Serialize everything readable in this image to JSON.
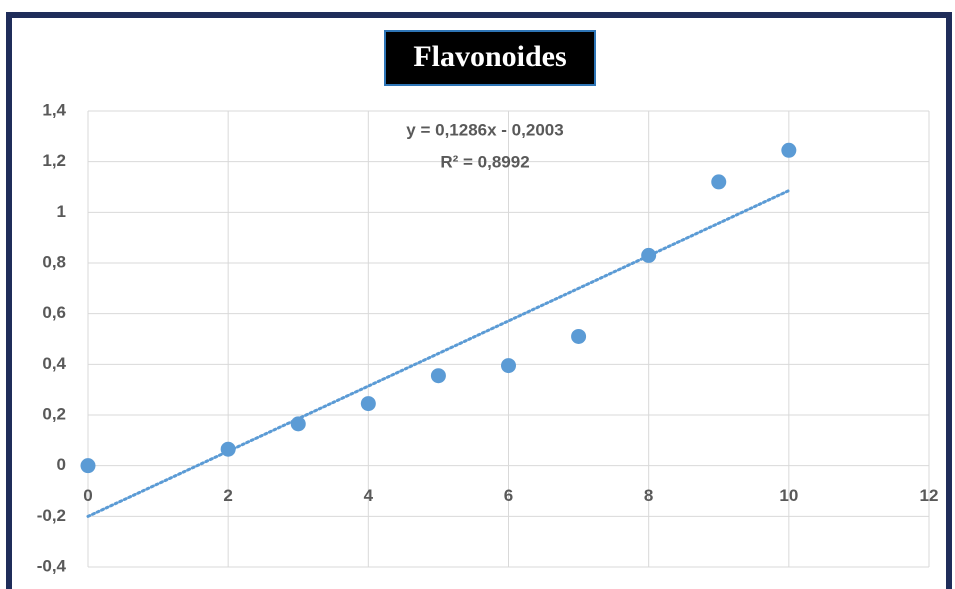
{
  "chart_data": {
    "type": "scatter",
    "title": "Flavonoides",
    "x": [
      0,
      2,
      3,
      4,
      5,
      6,
      7,
      8,
      9,
      10
    ],
    "series": [
      {
        "color": "#5b9bd5",
        "values": [
          0,
          0.065,
          0.165,
          0.245,
          0.355,
          0.395,
          0.51,
          0.83,
          1.12,
          1.245
        ]
      }
    ],
    "trendline": {
      "slope": 0.1286,
      "intercept": -0.2003,
      "color": "#5b9bd5"
    },
    "annotations": [
      "y = 0,1286x - 0,2003",
      "R² = 0,8992"
    ],
    "xlim": [
      0,
      12
    ],
    "xticks": [
      0,
      2,
      4,
      6,
      8,
      10,
      12
    ],
    "ylim": [
      -0.4,
      1.4
    ],
    "yticks": [
      {
        "value": -0.4,
        "label": "-0,4"
      },
      {
        "value": -0.2,
        "label": "-0,2"
      },
      0,
      {
        "value": 0.2,
        "label": "0,2"
      },
      {
        "value": 0.4,
        "label": "0,4"
      },
      {
        "value": 0.6,
        "label": "0,6"
      },
      {
        "value": 0.8,
        "label": "0,8"
      },
      1,
      {
        "value": 1.2,
        "label": "1,2"
      },
      {
        "value": 1.4,
        "label": "1,4"
      }
    ],
    "grid": true
  }
}
